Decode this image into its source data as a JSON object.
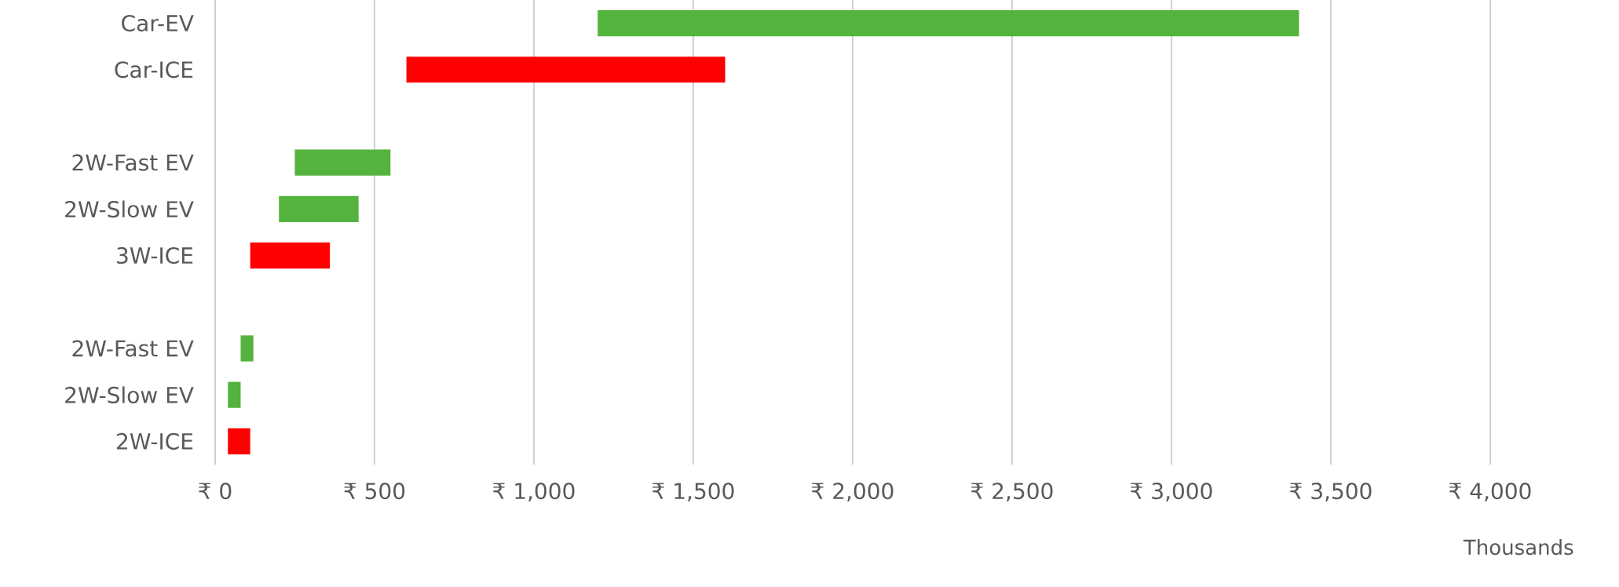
{
  "chart_data": {
    "type": "bar",
    "orientation": "horizontal",
    "xlabel": "Thousands",
    "categories": [
      "Car-EV",
      "Car-ICE",
      null,
      "2W-Fast EV",
      "2W-Slow EV",
      "3W-ICE",
      null,
      "2W-Fast EV",
      "2W-Slow EV",
      "2W-ICE"
    ],
    "base": [
      1200,
      600,
      null,
      250,
      200,
      110,
      null,
      80,
      40,
      40
    ],
    "values": [
      2200,
      1000,
      null,
      300,
      250,
      250,
      null,
      40,
      40,
      70
    ],
    "colors": [
      "#54b33c",
      "#ff0000",
      null,
      "#54b33c",
      "#54b33c",
      "#ff0000",
      null,
      "#54b33c",
      "#54b33c",
      "#ff0000"
    ],
    "xlim": [
      0,
      4000
    ],
    "xticks": [
      {
        "value": 0,
        "label": "₹ 0"
      },
      {
        "value": 500,
        "label": "₹ 500"
      },
      {
        "value": 1000,
        "label": "₹ 1,000"
      },
      {
        "value": 1500,
        "label": "₹ 1,500"
      },
      {
        "value": 2000,
        "label": "₹ 2,000"
      },
      {
        "value": 2500,
        "label": "₹ 2,500"
      },
      {
        "value": 3000,
        "label": "₹ 3,000"
      },
      {
        "value": 3500,
        "label": "₹ 3,500"
      },
      {
        "value": 4000,
        "label": "₹ 4,000"
      }
    ],
    "grid": "x"
  }
}
